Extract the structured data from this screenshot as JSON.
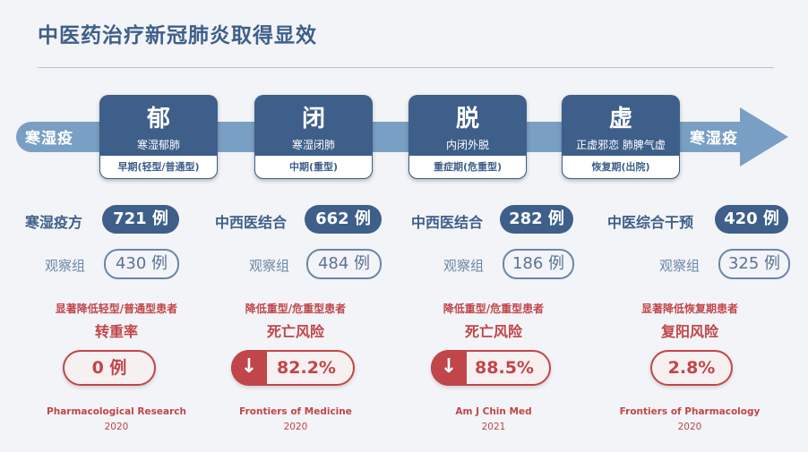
{
  "title": "中医药治疗新冠肺炎取得显效",
  "timeline": {
    "start_label": "寒湿疫",
    "end_label": "寒湿疫",
    "stages": [
      {
        "char": "郁",
        "desc": "寒湿郁肺",
        "phase": "早期(轻型/普通型)"
      },
      {
        "char": "闭",
        "desc": "寒湿闭肺",
        "phase": "中期(重型)"
      },
      {
        "char": "脱",
        "desc": "内闭外脱",
        "phase": "重症期(危重型)"
      },
      {
        "char": "虚",
        "desc": "正虚邪恋 肺脾气虚",
        "phase": "恢复期(出院)"
      }
    ]
  },
  "studies": [
    {
      "treat_label": "寒湿疫方",
      "treat_count": "721 例",
      "control_label": "观察组",
      "control_count": "430 例",
      "effect_line1": "显著降低轻型/普通型患者",
      "effect_line2": "转重率",
      "result": "0 例",
      "arrow": "",
      "source": "Pharmacological Research",
      "year": "2020"
    },
    {
      "treat_label": "中西医结合",
      "treat_count": "662 例",
      "control_label": "观察组",
      "control_count": "484 例",
      "effect_line1": "降低重型/危重型患者",
      "effect_line2": "死亡风险",
      "result": "82.2%",
      "arrow": "↓",
      "source": "Frontiers of Medicine",
      "year": "2020"
    },
    {
      "treat_label": "中西医结合",
      "treat_count": "282 例",
      "control_label": "观察组",
      "control_count": "186 例",
      "effect_line1": "降低重型/危重型患者",
      "effect_line2": "死亡风险",
      "result": "88.5%",
      "arrow": "↓",
      "source": "Am J Chin Med",
      "year": "2021"
    },
    {
      "treat_label": "中医综合干预",
      "treat_count": "420 例",
      "control_label": "观察组",
      "control_count": "325 例",
      "effect_line1": "显著降低恢复期患者",
      "effect_line2": "复阳风险",
      "result": "2.8%",
      "arrow": "",
      "source": "Frontiers of Pharmacology",
      "year": "2020"
    }
  ],
  "colors": {
    "primary": "#3e5f8a",
    "band": "#7a9fc4",
    "accent": "#c0464a"
  }
}
